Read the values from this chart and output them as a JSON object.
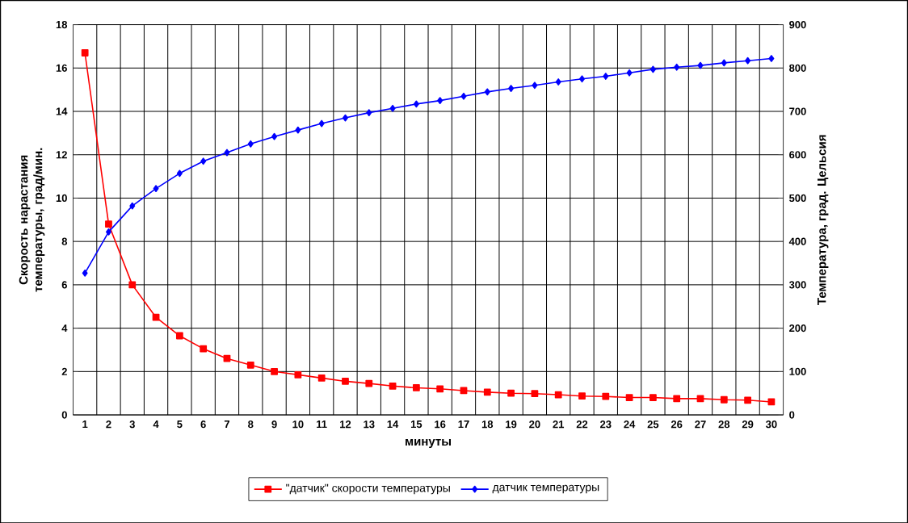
{
  "chart_data": {
    "type": "line",
    "xlabel": "минуты",
    "ylabel": "Скорость нарастания температуры, град/мин.",
    "y2label": "Температура, град. Цельсия",
    "categories": [
      "1",
      "2",
      "3",
      "4",
      "5",
      "6",
      "7",
      "8",
      "9",
      "10",
      "11",
      "12",
      "13",
      "14",
      "15",
      "16",
      "17",
      "18",
      "19",
      "20",
      "21",
      "22",
      "23",
      "24",
      "25",
      "26",
      "27",
      "28",
      "29",
      "30"
    ],
    "series": [
      {
        "name": "\"датчик\" скорости температуры",
        "color": "#ff0000",
        "marker": "square",
        "values": [
          16.7,
          8.8,
          6.0,
          4.5,
          3.65,
          3.05,
          2.6,
          2.3,
          2.0,
          1.85,
          1.7,
          1.55,
          1.45,
          1.33,
          1.25,
          1.2,
          1.12,
          1.05,
          1.0,
          0.98,
          0.93,
          0.87,
          0.85,
          0.8,
          0.8,
          0.75,
          0.75,
          0.7,
          0.68,
          0.6
        ]
      },
      {
        "name": "датчик температуры",
        "color": "#0000ff",
        "marker": "diamond",
        "axis": "y2",
        "values": [
          327,
          422,
          482,
          522,
          557,
          585,
          605,
          625,
          642,
          657,
          672,
          685,
          697,
          707,
          717,
          725,
          735,
          745,
          753,
          760,
          768,
          775,
          781,
          789,
          797,
          802,
          806,
          812,
          817,
          822
        ]
      }
    ],
    "ylim": [
      0,
      18
    ],
    "yticks": [
      0,
      2,
      4,
      6,
      8,
      10,
      12,
      14,
      16,
      18
    ],
    "y2lim": [
      0,
      900
    ],
    "y2ticks": [
      0,
      100,
      200,
      300,
      400,
      500,
      600,
      700,
      800,
      900
    ],
    "grid": true,
    "legend": "bottom",
    "line_style": "solid"
  }
}
